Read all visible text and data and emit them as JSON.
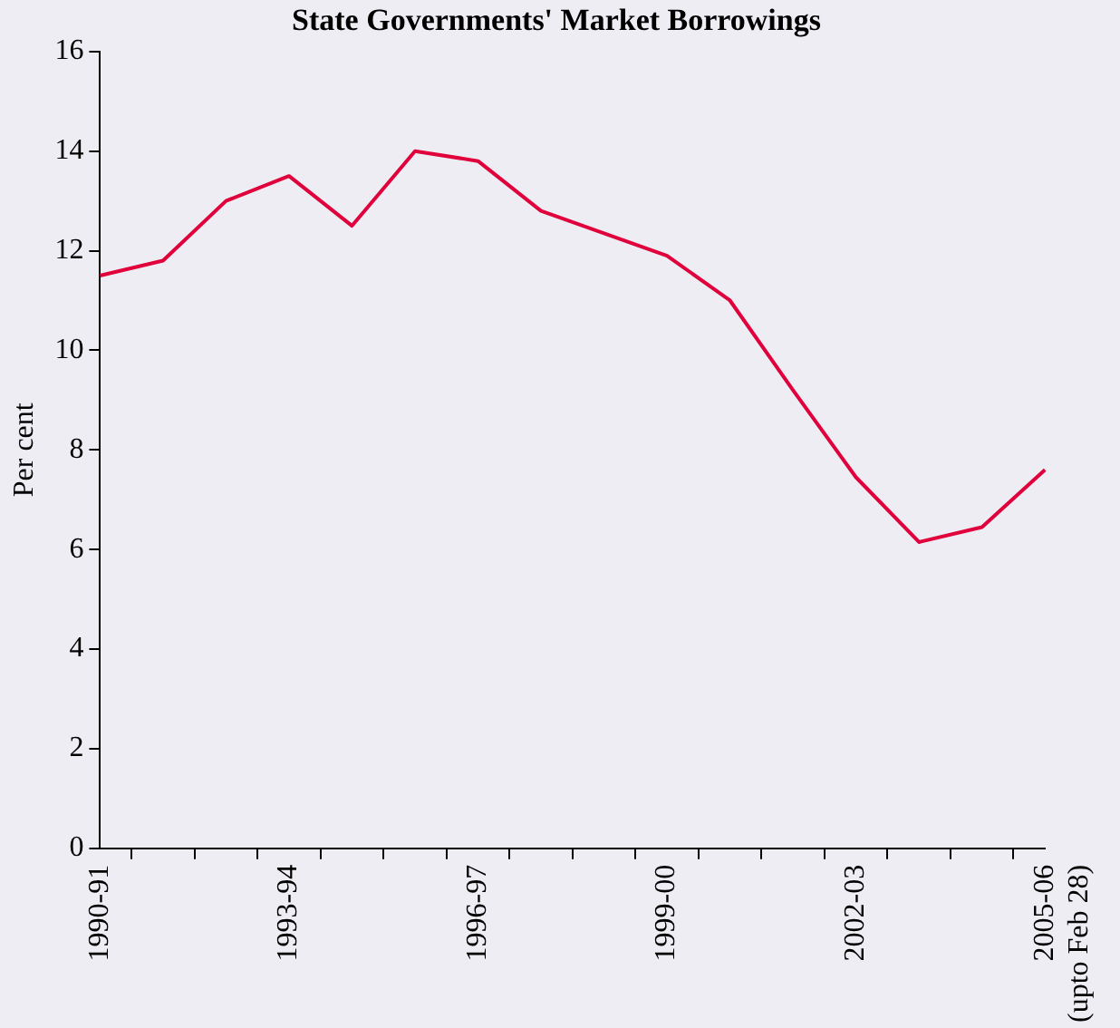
{
  "chart_data": {
    "type": "line",
    "title": "State Governments' Market Borrowings",
    "ylabel": "Per cent",
    "categories": [
      "1990-91",
      null,
      null,
      "1993-94",
      null,
      null,
      "1996-97",
      null,
      null,
      "1999-00",
      null,
      null,
      "2002-03",
      null,
      null,
      "2005-06\n(upto Feb 28)"
    ],
    "series": [
      {
        "color": "#e0003c",
        "values": [
          11.5,
          11.8,
          13.0,
          13.5,
          12.5,
          14.0,
          13.8,
          12.8,
          12.35,
          11.9,
          11.0,
          9.2,
          7.45,
          6.15,
          6.45,
          7.6
        ]
      }
    ],
    "ylim": [
      0,
      16
    ],
    "yticks": [
      0,
      2,
      4,
      6,
      8,
      10,
      12,
      14,
      16
    ],
    "grid": false,
    "legend": false,
    "marker": "none",
    "line_style": "solid"
  }
}
